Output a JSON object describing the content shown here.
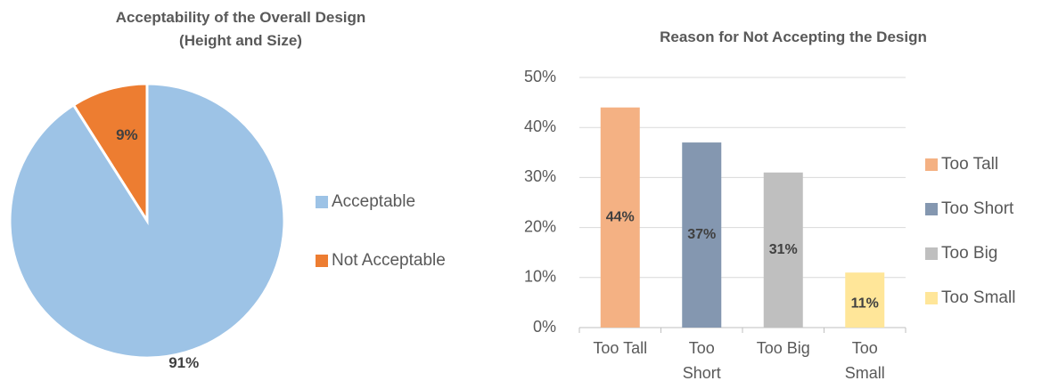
{
  "pie_chart": {
    "title_line1": "Acceptability of the Overall Design",
    "title_line2": "(Height and Size)",
    "legend": [
      "Acceptable",
      "Not Acceptable"
    ]
  },
  "bar_chart": {
    "title": "Reason for Not Accepting the Design",
    "legend": [
      "Too Tall",
      "Too Short",
      "Too Big",
      "Too Small"
    ]
  },
  "chart_data": [
    {
      "type": "pie",
      "title": "Acceptability of the Overall Design (Height and Size)",
      "categories": [
        "Acceptable",
        "Not Acceptable"
      ],
      "values": [
        91,
        9
      ],
      "data_labels": [
        "91%",
        "9%"
      ],
      "colors": [
        "#9dc3e6",
        "#ed7d31"
      ],
      "legend_position": "right"
    },
    {
      "type": "bar",
      "title": "Reason for Not Accepting the Design",
      "categories": [
        "Too Tall",
        "Too Short",
        "Too Big",
        "Too Small"
      ],
      "category_tick_labels": [
        [
          "Too Tall"
        ],
        [
          "Too",
          "Short"
        ],
        [
          "Too Big"
        ],
        [
          "Too",
          "Small"
        ]
      ],
      "values": [
        44,
        37,
        31,
        11
      ],
      "data_labels": [
        "44%",
        "37%",
        "31%",
        "11%"
      ],
      "colors": [
        "#f4b183",
        "#8497b0",
        "#bfbfbf",
        "#ffe699"
      ],
      "ylim": [
        0,
        50
      ],
      "yticks": [
        0,
        10,
        20,
        30,
        40,
        50
      ],
      "ytick_labels": [
        "0%",
        "10%",
        "20%",
        "30%",
        "40%",
        "50%"
      ],
      "grid": true,
      "legend_position": "right"
    }
  ]
}
